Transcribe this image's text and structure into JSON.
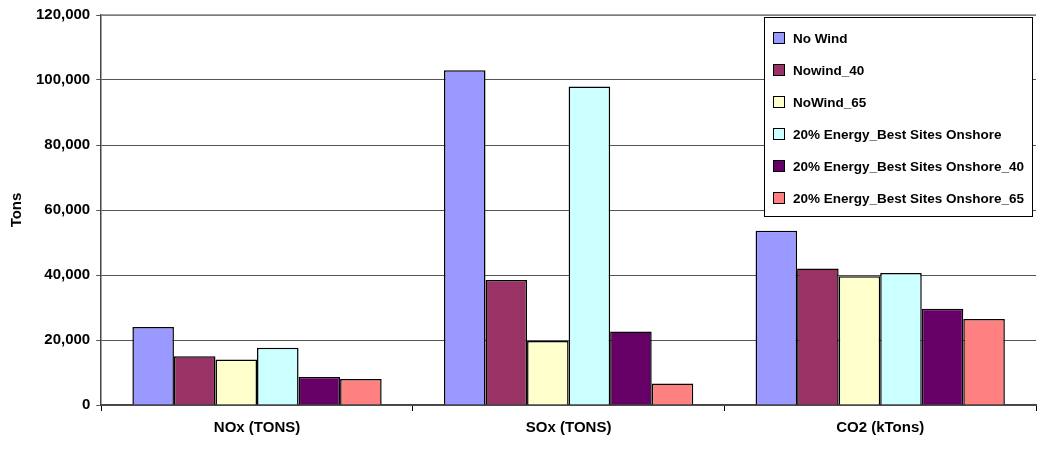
{
  "chart_data": {
    "type": "bar",
    "ylabel": "Tons",
    "categories": [
      "NOx (TONS)",
      "SOx (TONS)",
      "CO2 (kTons)"
    ],
    "series": [
      {
        "name": "No Wind",
        "color": "#9999ff",
        "values": [
          24000,
          103000,
          53600
        ]
      },
      {
        "name": "Nowind_40",
        "color": "#993366",
        "values": [
          15000,
          38500,
          42000
        ]
      },
      {
        "name": "NoWind_65",
        "color": "#ffffcc",
        "values": [
          14000,
          19700,
          39600
        ]
      },
      {
        "name": "20% Energy_Best Sites Onshore",
        "color": "#ccffff",
        "values": [
          17600,
          98000,
          40600
        ]
      },
      {
        "name": "20% Energy_Best Sites Onshore_40",
        "color": "#660066",
        "values": [
          8600,
          22600,
          29600
        ]
      },
      {
        "name": "20% Energy_Best Sites Onshore_65",
        "color": "#ff8080",
        "values": [
          8000,
          6600,
          26500
        ]
      }
    ],
    "ylim": [
      0,
      120000
    ],
    "yticks": [
      0,
      {
        "value": 20000,
        "label": "20,000"
      },
      {
        "value": 40000,
        "label": "40,000"
      },
      {
        "value": 60000,
        "label": "60,000"
      },
      {
        "value": 80000,
        "label": "80,000"
      },
      {
        "value": 100000,
        "label": "100,000"
      },
      {
        "value": 120000,
        "label": "120,000"
      }
    ],
    "grid": "y",
    "legend": "top right"
  }
}
